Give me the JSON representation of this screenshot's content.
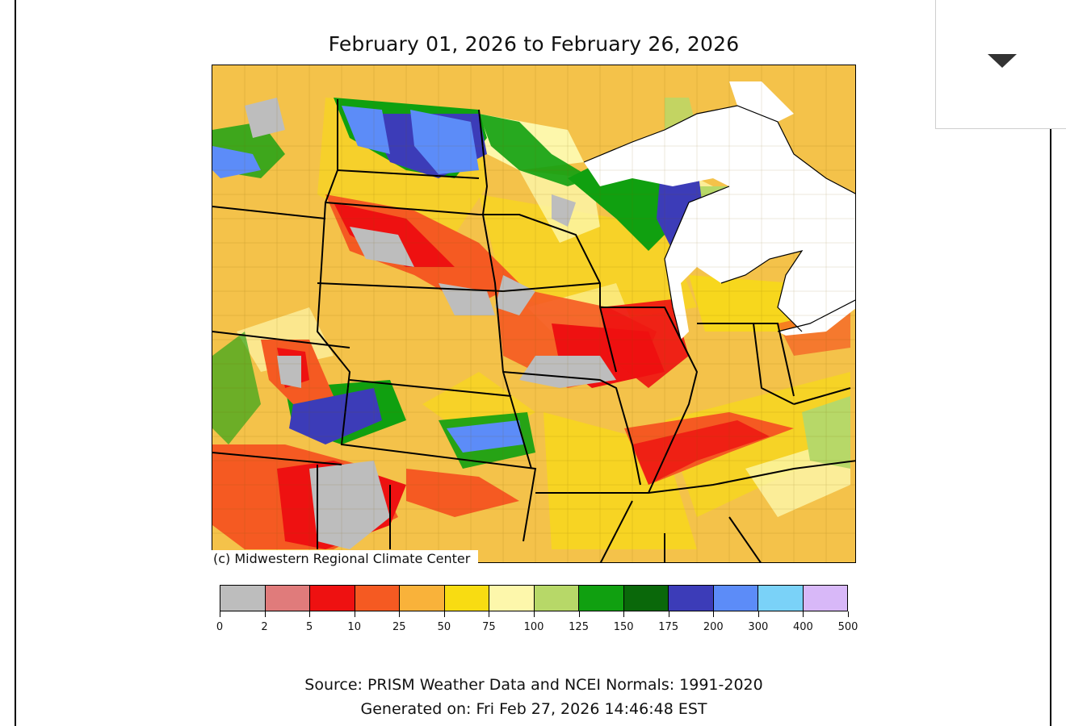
{
  "title": "February 01, 2026 to February 26, 2026",
  "copyright": "(c) Midwestern Regional Climate Center",
  "colorbar": {
    "colors": [
      "#bdbdbd",
      "#e07b7b",
      "#ee1111",
      "#f55a22",
      "#f9b23a",
      "#f8dc12",
      "#fdf7ab",
      "#b7d868",
      "#10a010",
      "#0a680a",
      "#3c3cb8",
      "#5c8cf8",
      "#7ad2f8",
      "#d8b8f8"
    ],
    "ticks": [
      "0",
      "2",
      "5",
      "10",
      "25",
      "50",
      "75",
      "100",
      "125",
      "150",
      "175",
      "200",
      "300",
      "400",
      "500"
    ]
  },
  "source_line": "Source: PRISM Weather Data and NCEI Normals: 1991-2020",
  "generated_line": "Generated on: Fri Feb 27, 2026 14:46:48 EST",
  "dropdown": {
    "icon": "caret-down-icon"
  }
}
